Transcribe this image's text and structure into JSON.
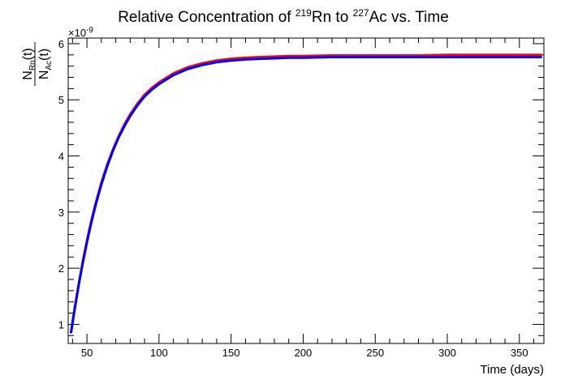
{
  "chart_data": {
    "type": "line",
    "title": {
      "prefix": "Relative Concentration of ",
      "sup1": "219",
      "mid1": "Rn to ",
      "sup2": "227",
      "mid2": "Ac vs. Time"
    },
    "xlabel": "Time (days)",
    "ylabel": {
      "num_main": "N",
      "num_sub": "Rn",
      "num_tail": "(t)",
      "den_main": "N",
      "den_sub": "Ac",
      "den_tail": "(t)"
    },
    "y_multiplier": {
      "base": "×10",
      "exp": "-9"
    },
    "xlim": [
      37,
      367
    ],
    "ylim": [
      0.66,
      6.1
    ],
    "x_ticks": [
      50,
      100,
      150,
      200,
      250,
      300,
      350
    ],
    "y_ticks": [
      1,
      2,
      3,
      4,
      5,
      6
    ],
    "grid": false,
    "legend": "none",
    "series": [
      {
        "color": "#ff0000",
        "x": [
          39,
          41,
          43,
          45,
          47,
          50,
          53,
          56,
          60,
          64,
          68,
          72,
          76,
          80,
          85,
          90,
          95,
          100,
          110,
          120,
          130,
          140,
          150,
          160,
          170,
          180,
          190,
          200,
          220,
          240,
          260,
          280,
          300,
          320,
          340,
          365
        ],
        "values": [
          0.86,
          1.2,
          1.52,
          1.82,
          2.1,
          2.49,
          2.84,
          3.15,
          3.52,
          3.84,
          4.11,
          4.35,
          4.56,
          4.74,
          4.93,
          5.09,
          5.21,
          5.31,
          5.47,
          5.58,
          5.65,
          5.7,
          5.73,
          5.75,
          5.76,
          5.77,
          5.78,
          5.78,
          5.79,
          5.79,
          5.79,
          5.79,
          5.8,
          5.8,
          5.8,
          5.8
        ]
      },
      {
        "color": "#0000ff",
        "x": [
          39,
          41,
          43,
          45,
          47,
          50,
          53,
          56,
          60,
          64,
          68,
          72,
          76,
          80,
          85,
          90,
          95,
          100,
          110,
          120,
          130,
          140,
          150,
          160,
          170,
          180,
          190,
          200,
          220,
          240,
          260,
          280,
          300,
          320,
          340,
          365
        ],
        "values": [
          0.86,
          1.19,
          1.5,
          1.8,
          2.08,
          2.46,
          2.81,
          3.12,
          3.49,
          3.81,
          4.09,
          4.33,
          4.53,
          4.71,
          4.9,
          5.06,
          5.18,
          5.28,
          5.44,
          5.55,
          5.62,
          5.67,
          5.7,
          5.72,
          5.73,
          5.74,
          5.75,
          5.75,
          5.76,
          5.76,
          5.76,
          5.76,
          5.76,
          5.76,
          5.76,
          5.76
        ]
      }
    ]
  }
}
